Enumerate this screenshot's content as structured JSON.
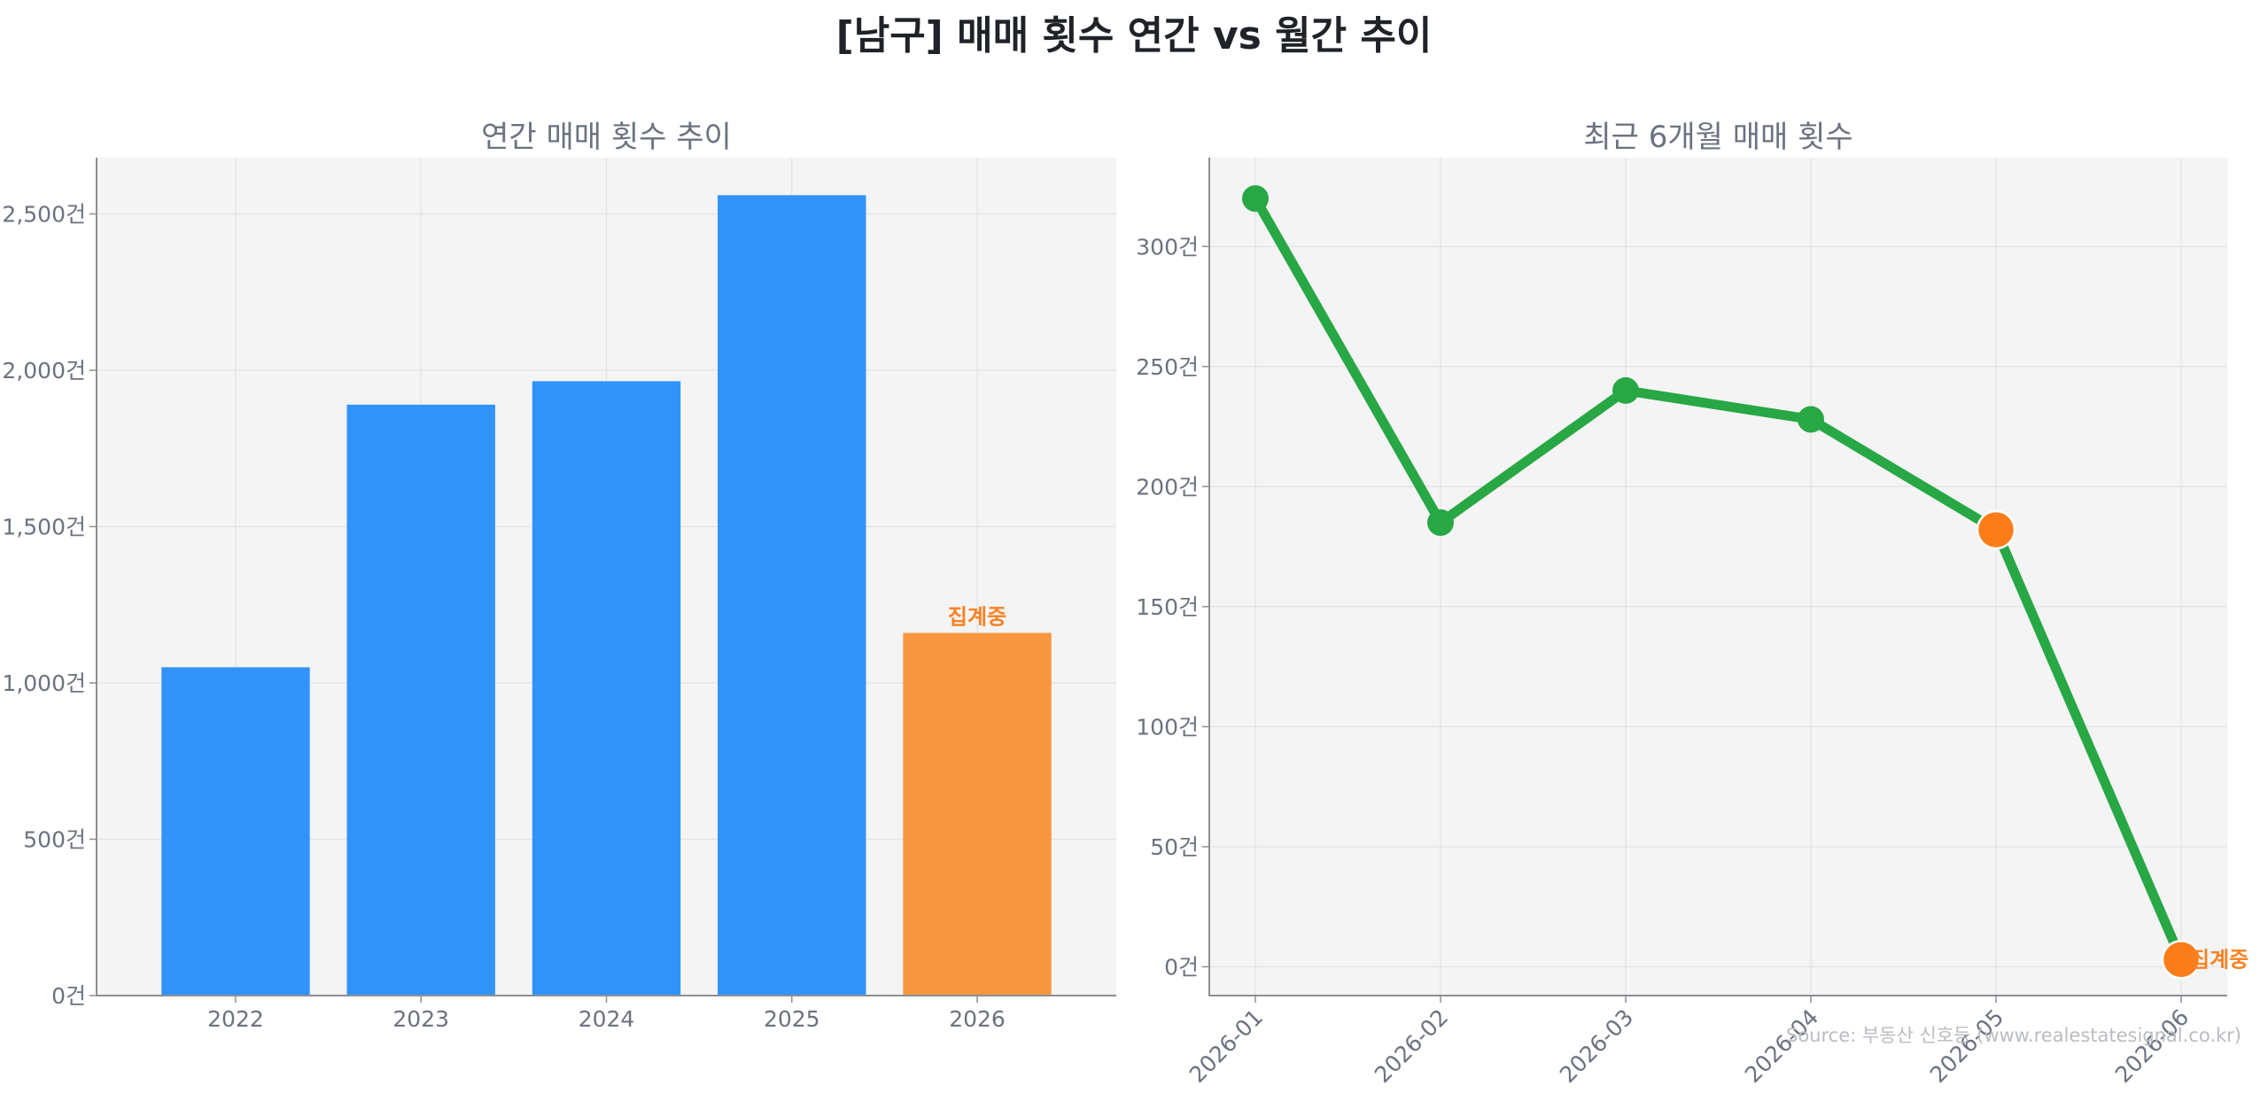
{
  "title": "[남구] 매매 횟수 연간 vs 월간 추이",
  "source": "Source: 부동산 신호등 (www.realestatesignal.co.kr)",
  "colors": {
    "bar": "#3193fa",
    "bar_highlight": "#f99740",
    "line": "#28a745",
    "marker_highlight": "#fb7d1a",
    "status_text": "#fb8122"
  },
  "chart_data": [
    {
      "type": "bar",
      "title": "연간 매매 횟수 추이",
      "categories": [
        "2022",
        "2023",
        "2024",
        "2025",
        "2026"
      ],
      "values": [
        1050,
        1890,
        1965,
        2560,
        1160
      ],
      "highlight_index": 4,
      "highlight_label": "집계중",
      "ylim": [
        0,
        2680
      ],
      "yticks": [
        0,
        500,
        1000,
        1500,
        2000,
        2500
      ],
      "ytick_labels": [
        "0건",
        "500건",
        "1,000건",
        "1,500건",
        "2,000건",
        "2,500건"
      ],
      "grid": true
    },
    {
      "type": "line",
      "title": "최근 6개월 매매 횟수",
      "x": [
        "2026-01",
        "2026-02",
        "2026-03",
        "2026-04",
        "2026-05",
        "2026-06"
      ],
      "values": [
        320,
        185,
        240,
        228,
        182,
        3
      ],
      "highlight_indices": [
        4,
        5
      ],
      "highlight_label": "집계중",
      "ylim": [
        -12,
        337
      ],
      "yticks": [
        0,
        50,
        100,
        150,
        200,
        250,
        300
      ],
      "ytick_labels": [
        "0건",
        "50건",
        "100건",
        "150건",
        "200건",
        "250건",
        "300건"
      ],
      "grid": true
    }
  ]
}
